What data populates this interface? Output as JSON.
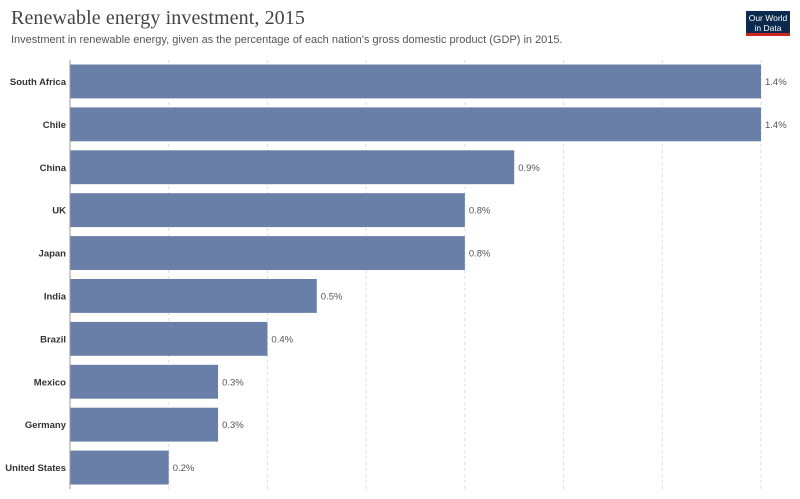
{
  "header": {
    "title": "Renewable energy investment, 2015",
    "subtitle": "Investment in renewable energy, given as the percentage of each nation's gross domestic product (GDP) in 2015."
  },
  "logo": {
    "line1": "Our World",
    "line2": "in Data",
    "background": "#0b2a4e",
    "accent": "#ce261e"
  },
  "colors": {
    "bar": "#6a7fa8",
    "grid": "#dddddd",
    "axis": "#999999",
    "label": "#333333",
    "value": "#555555"
  },
  "chart_data": {
    "type": "bar",
    "orientation": "horizontal",
    "title": "Renewable energy investment, 2015",
    "subtitle": "Investment in renewable energy, given as the percentage of each nation's gross domestic product (GDP) in 2015.",
    "categories": [
      "South Africa",
      "Chile",
      "China",
      "UK",
      "Japan",
      "India",
      "Brazil",
      "Mexico",
      "Germany",
      "United States"
    ],
    "values": [
      1.4,
      1.4,
      0.9,
      0.8,
      0.8,
      0.5,
      0.4,
      0.3,
      0.3,
      0.2
    ],
    "value_labels": [
      "1.4%",
      "1.4%",
      "0.9%",
      "0.8%",
      "0.8%",
      "0.5%",
      "0.4%",
      "0.3%",
      "0.3%",
      "0.2%"
    ],
    "unit": "%",
    "xlim": [
      0,
      1.4
    ],
    "grid": true,
    "gridlines": [
      0,
      0.2,
      0.4,
      0.6,
      0.8,
      1.0,
      1.2,
      1.4
    ],
    "xlabel": "",
    "ylabel": ""
  }
}
